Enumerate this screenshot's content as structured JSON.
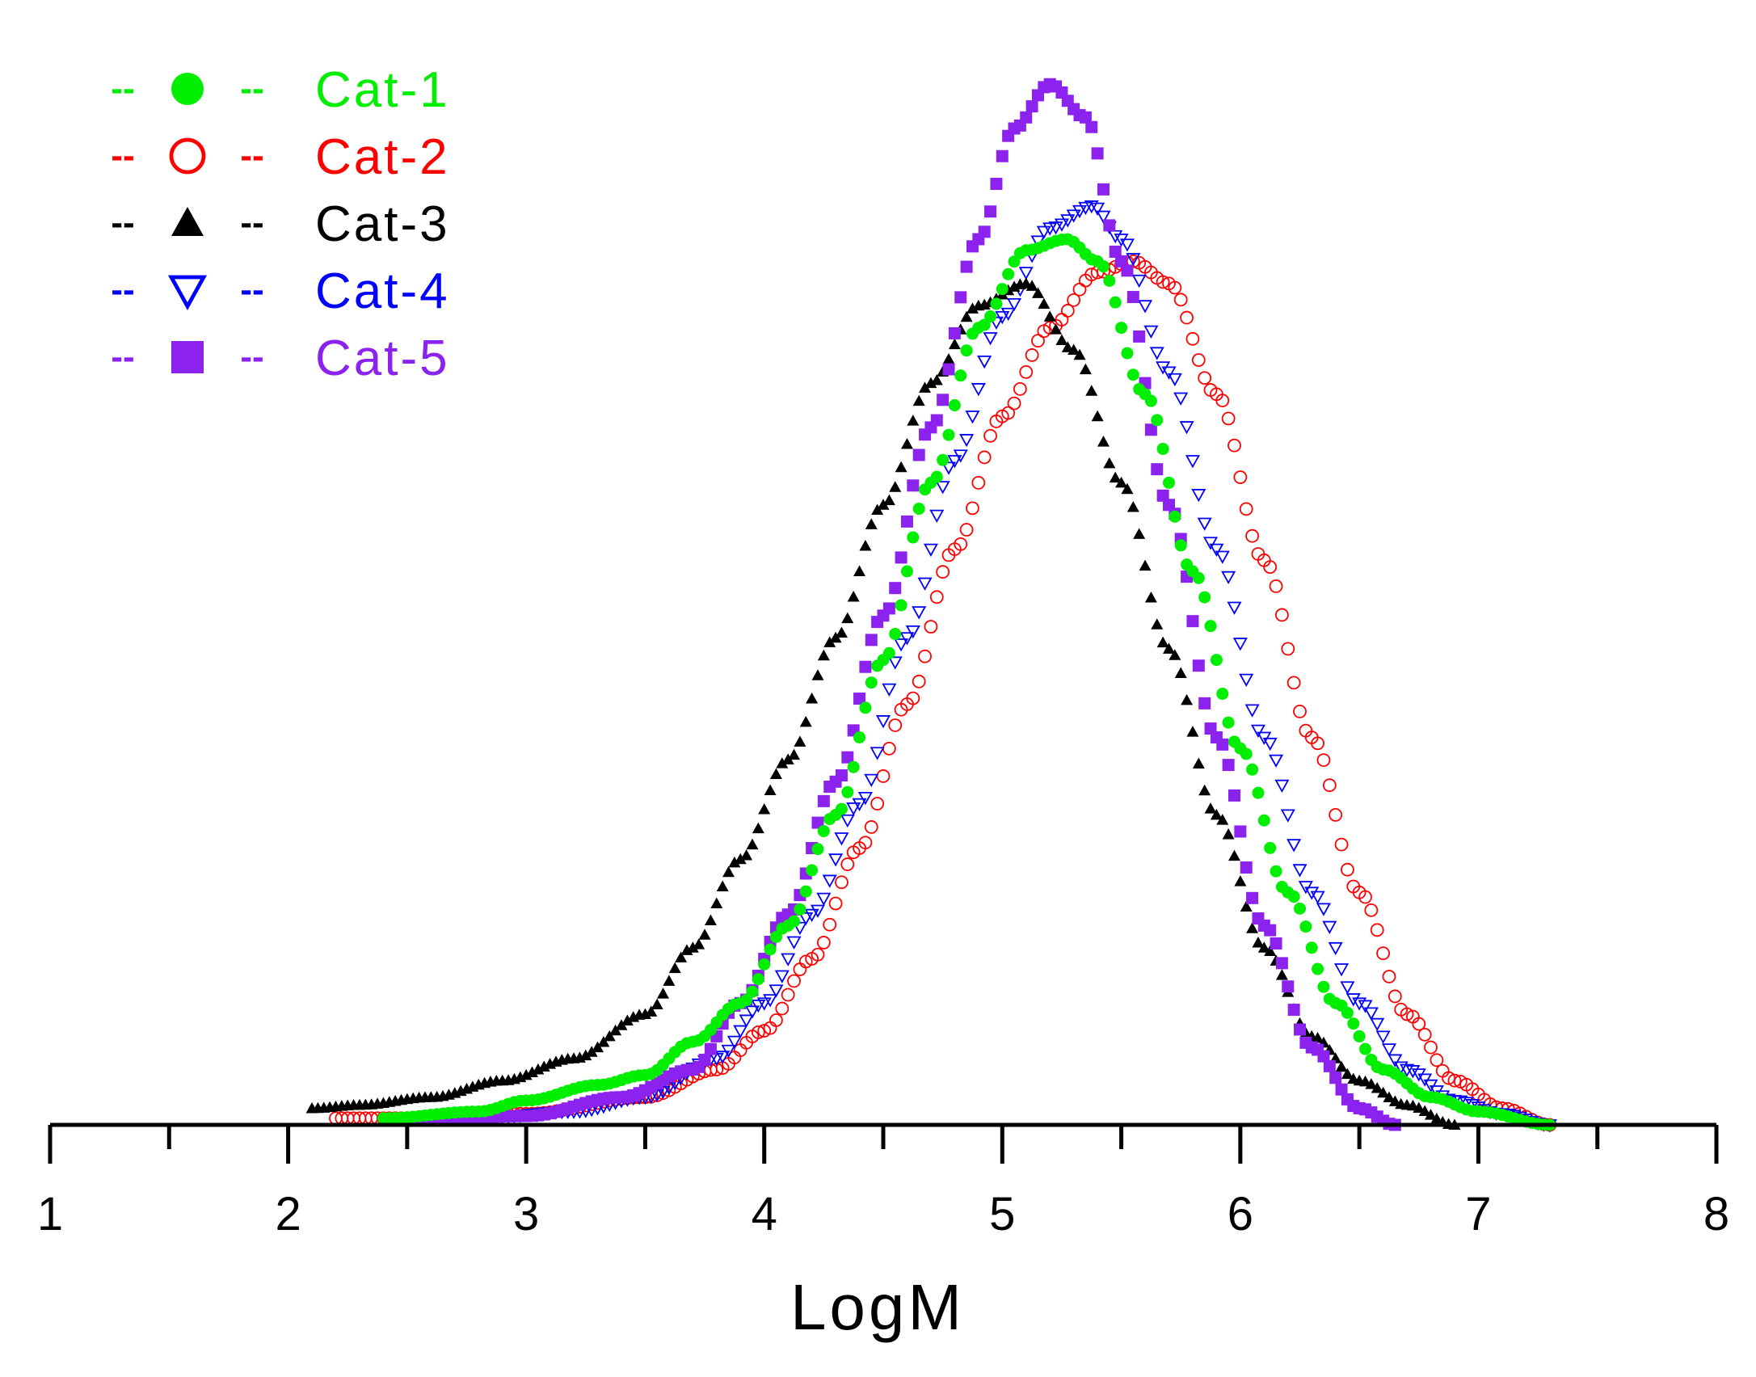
{
  "chart_data": {
    "type": "scatter",
    "title": "",
    "xlabel": "LogM",
    "ylabel": "",
    "xlim": [
      1,
      8
    ],
    "ylim": [
      0,
      1.0
    ],
    "x_ticks": [
      "1",
      "2",
      "3",
      "4",
      "5",
      "6",
      "7",
      "8"
    ],
    "grid": false,
    "legend_position": "top-left",
    "series": [
      {
        "name": "Cat-1",
        "color": "#00ee00",
        "marker": "filled-circle",
        "legend_dash": "--",
        "x_start": 2.4,
        "x_end": 7.3,
        "peak_x": 5.27,
        "peak_y": 0.8,
        "points": [
          [
            2.4,
            0.006
          ],
          [
            2.8,
            0.012
          ],
          [
            3.0,
            0.022
          ],
          [
            3.3,
            0.036
          ],
          [
            3.5,
            0.045
          ],
          [
            3.7,
            0.075
          ],
          [
            3.9,
            0.11
          ],
          [
            4.1,
            0.18
          ],
          [
            4.3,
            0.28
          ],
          [
            4.5,
            0.42
          ],
          [
            4.7,
            0.58
          ],
          [
            4.9,
            0.72
          ],
          [
            5.1,
            0.79
          ],
          [
            5.27,
            0.8
          ],
          [
            5.4,
            0.78
          ],
          [
            5.6,
            0.66
          ],
          [
            5.8,
            0.5
          ],
          [
            6.0,
            0.34
          ],
          [
            6.2,
            0.21
          ],
          [
            6.4,
            0.11
          ],
          [
            6.6,
            0.05
          ],
          [
            6.8,
            0.025
          ],
          [
            7.0,
            0.012
          ],
          [
            7.3,
            0.0
          ]
        ]
      },
      {
        "name": "Cat-2",
        "color": "#ff0000",
        "marker": "open-circle",
        "legend_dash": "--",
        "x_start": 2.2,
        "x_end": 7.3,
        "peak_x": 5.55,
        "peak_y": 0.78,
        "points": [
          [
            2.2,
            0.006
          ],
          [
            2.5,
            0.006
          ],
          [
            3.0,
            0.01
          ],
          [
            3.5,
            0.025
          ],
          [
            3.8,
            0.05
          ],
          [
            4.0,
            0.085
          ],
          [
            4.2,
            0.15
          ],
          [
            4.4,
            0.25
          ],
          [
            4.6,
            0.38
          ],
          [
            4.8,
            0.52
          ],
          [
            5.0,
            0.64
          ],
          [
            5.2,
            0.72
          ],
          [
            5.4,
            0.77
          ],
          [
            5.55,
            0.78
          ],
          [
            5.7,
            0.76
          ],
          [
            5.9,
            0.66
          ],
          [
            6.1,
            0.51
          ],
          [
            6.3,
            0.35
          ],
          [
            6.5,
            0.21
          ],
          [
            6.7,
            0.1
          ],
          [
            6.9,
            0.04
          ],
          [
            7.1,
            0.015
          ],
          [
            7.3,
            0.0
          ]
        ]
      },
      {
        "name": "Cat-3",
        "color": "#000000",
        "marker": "filled-triangle-up",
        "legend_dash": "--",
        "x_start": 2.1,
        "x_end": 6.9,
        "peak_x": 5.1,
        "peak_y": 0.76,
        "points": [
          [
            2.1,
            0.015
          ],
          [
            2.3,
            0.018
          ],
          [
            2.6,
            0.025
          ],
          [
            2.9,
            0.04
          ],
          [
            3.2,
            0.06
          ],
          [
            3.5,
            0.1
          ],
          [
            3.7,
            0.16
          ],
          [
            3.9,
            0.24
          ],
          [
            4.1,
            0.33
          ],
          [
            4.3,
            0.44
          ],
          [
            4.5,
            0.56
          ],
          [
            4.7,
            0.67
          ],
          [
            4.9,
            0.74
          ],
          [
            5.1,
            0.76
          ],
          [
            5.3,
            0.7
          ],
          [
            5.5,
            0.58
          ],
          [
            5.7,
            0.43
          ],
          [
            5.9,
            0.28
          ],
          [
            6.1,
            0.16
          ],
          [
            6.3,
            0.08
          ],
          [
            6.5,
            0.04
          ],
          [
            6.7,
            0.018
          ],
          [
            6.9,
            0.0
          ]
        ]
      },
      {
        "name": "Cat-4",
        "color": "#0000ff",
        "marker": "open-triangle-down",
        "legend_dash": "--",
        "x_start": 2.8,
        "x_end": 7.3,
        "peak_x": 5.38,
        "peak_y": 0.83,
        "points": [
          [
            2.8,
            0.006
          ],
          [
            3.2,
            0.012
          ],
          [
            3.5,
            0.025
          ],
          [
            3.8,
            0.06
          ],
          [
            4.0,
            0.11
          ],
          [
            4.2,
            0.19
          ],
          [
            4.4,
            0.29
          ],
          [
            4.6,
            0.44
          ],
          [
            4.8,
            0.6
          ],
          [
            5.0,
            0.73
          ],
          [
            5.2,
            0.81
          ],
          [
            5.38,
            0.83
          ],
          [
            5.5,
            0.8
          ],
          [
            5.7,
            0.68
          ],
          [
            5.9,
            0.52
          ],
          [
            6.1,
            0.35
          ],
          [
            6.3,
            0.21
          ],
          [
            6.5,
            0.11
          ],
          [
            6.7,
            0.05
          ],
          [
            6.9,
            0.022
          ],
          [
            7.1,
            0.01
          ],
          [
            7.3,
            0.0
          ]
        ]
      },
      {
        "name": "Cat-5",
        "color": "#8b22ee",
        "marker": "filled-square",
        "legend_dash": "--",
        "x_start": 2.5,
        "x_end": 6.65,
        "peak_x": 5.2,
        "peak_y": 0.94,
        "points": [
          [
            2.5,
            0.004
          ],
          [
            3.0,
            0.008
          ],
          [
            3.4,
            0.025
          ],
          [
            3.7,
            0.05
          ],
          [
            3.9,
            0.11
          ],
          [
            4.1,
            0.19
          ],
          [
            4.3,
            0.31
          ],
          [
            4.5,
            0.46
          ],
          [
            4.7,
            0.63
          ],
          [
            4.9,
            0.8
          ],
          [
            5.05,
            0.9
          ],
          [
            5.2,
            0.94
          ],
          [
            5.35,
            0.91
          ],
          [
            5.5,
            0.78
          ],
          [
            5.7,
            0.56
          ],
          [
            5.9,
            0.35
          ],
          [
            6.1,
            0.18
          ],
          [
            6.3,
            0.07
          ],
          [
            6.5,
            0.015
          ],
          [
            6.65,
            0.0
          ]
        ]
      }
    ]
  }
}
